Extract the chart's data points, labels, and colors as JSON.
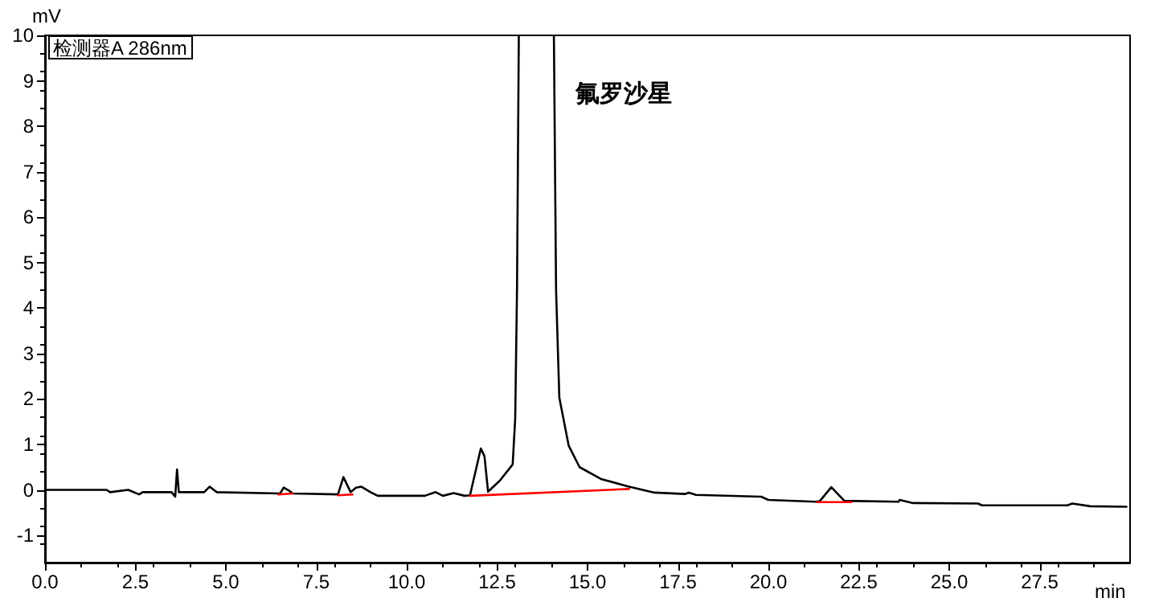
{
  "chart_data": {
    "type": "line",
    "ylabel": "mV",
    "xlabel": "min",
    "xlim": [
      0,
      30
    ],
    "ylim": [
      -1.6,
      10
    ],
    "xticks": [
      {
        "value": 0,
        "label": "0.0"
      },
      2.5,
      {
        "value": 5,
        "label": "5.0"
      },
      7.5,
      {
        "value": 10,
        "label": "10.0"
      },
      12.5,
      {
        "value": 15,
        "label": "15.0"
      },
      17.5,
      {
        "value": 20,
        "label": "20.0"
      },
      22.5,
      {
        "value": 25,
        "label": "25.0"
      },
      27.5
    ],
    "yticks": [
      -1,
      0,
      1,
      2,
      3,
      4,
      5,
      6,
      7,
      8,
      9,
      10
    ],
    "marker": "none",
    "line_style": "solid",
    "annotations": [
      "检测器A 286nm",
      "氟罗沙星"
    ],
    "series": [
      {
        "color": "#000000",
        "x": [
          0,
          1.7,
          1.8,
          2.3,
          2.6,
          2.7,
          3.5,
          3.6,
          3.65,
          3.7,
          4.4,
          4.55,
          4.75,
          6.5,
          6.6,
          6.75,
          6.85,
          8.1,
          8.25,
          8.45,
          8.6,
          8.75,
          9.0,
          9.2,
          10.5,
          10.8,
          11.0,
          11.3,
          11.6,
          11.75,
          12.05,
          12.15,
          12.25,
          12.57,
          12.93,
          13.0,
          13.05,
          13.1,
          13.6,
          14.07,
          14.13,
          14.22,
          14.48,
          14.78,
          15.37,
          16.1,
          16.85,
          17.7,
          17.8,
          18.0,
          19.8,
          20.0,
          21.3,
          21.42,
          21.74,
          22.1,
          23.6,
          23.63,
          24.0,
          25.8,
          25.9,
          28.27,
          28.4,
          28.9,
          29.9
        ],
        "values": [
          0,
          0,
          -0.05,
          0,
          -0.1,
          -0.05,
          -0.05,
          -0.15,
          0.45,
          -0.05,
          -0.05,
          0.07,
          -0.05,
          -0.08,
          0.05,
          -0.02,
          -0.08,
          -0.1,
          0.28,
          -0.05,
          0.05,
          0.07,
          -0.05,
          -0.13,
          -0.13,
          -0.05,
          -0.13,
          -0.07,
          -0.13,
          -0.12,
          0.91,
          0.74,
          -0.04,
          0.2,
          0.56,
          1.56,
          4.4,
          10,
          null,
          10,
          4.4,
          2.03,
          0.97,
          0.5,
          0.24,
          0.08,
          -0.06,
          -0.09,
          -0.06,
          -0.11,
          -0.15,
          -0.22,
          -0.26,
          -0.25,
          0.06,
          -0.24,
          -0.26,
          -0.22,
          -0.29,
          -0.3,
          -0.34,
          -0.34,
          -0.3,
          -0.36,
          -0.37
        ]
      },
      {
        "color": "#ff0000",
        "x": [
          6.45,
          6.85,
          6.9,
          8.1,
          8.5,
          8.6,
          11.75,
          16.15,
          16.2,
          21.35,
          22.3
        ],
        "values": [
          -0.1,
          -0.08,
          null,
          -0.12,
          -0.1,
          null,
          -0.13,
          0.02,
          null,
          -0.27,
          -0.27
        ]
      }
    ]
  }
}
